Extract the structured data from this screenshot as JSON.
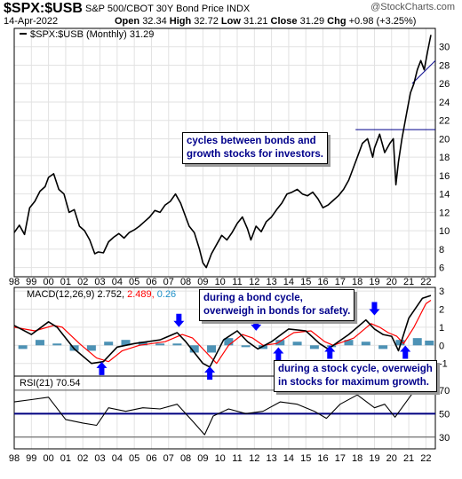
{
  "header": {
    "symbol": "$SPX:$USB",
    "description": "S&P 500/CBOT 30Y Bond Price INDX",
    "date": "14-Apr-2022",
    "open_label": "Open",
    "open": "32.34",
    "high_label": "High",
    "high": "32.72",
    "low_label": "Low",
    "low": "31.21",
    "close_label": "Close",
    "close": "31.29",
    "chg_label": "Chg",
    "chg": "+0.98 (+3.25%)",
    "brand": "@StockCharts.com"
  },
  "annotations": {
    "cycles": [
      "cycles between bonds and",
      "growth stocks for investors."
    ],
    "bond_cycle": [
      "during a bond cycle,",
      "overweigh in bonds for safety."
    ],
    "stock_cycle": [
      "during a stock cycle, overweigh",
      "in stocks for maximum growth."
    ]
  },
  "colors": {
    "price": "#000000",
    "macd": "#000000",
    "signal": "#ff0000",
    "histogram": "#2e7fa8",
    "arrows": "#0000ff",
    "rsi_line": "#000080",
    "annot_text": "#00008B",
    "macd_value_blue": "#1e90c8"
  },
  "chart_data": [
    {
      "type": "line",
      "title": "$SPX:$USB (Monthly) 31.29",
      "legend": [
        "$SPX:$USB (Monthly) 31.29"
      ],
      "x_ticks": [
        "98",
        "99",
        "00",
        "01",
        "02",
        "03",
        "04",
        "05",
        "06",
        "07",
        "08",
        "09",
        "10",
        "11",
        "12",
        "13",
        "14",
        "15",
        "16",
        "17",
        "18",
        "19",
        "20",
        "21",
        "22"
      ],
      "y_ticks": [
        6,
        8,
        10,
        12,
        14,
        16,
        18,
        20,
        22,
        24,
        26,
        28,
        30
      ],
      "ylim": [
        5,
        32
      ],
      "grid": true,
      "series": [
        {
          "name": "$SPX:$USB",
          "x": [
            1998.0,
            1998.3,
            1998.6,
            1998.9,
            1999.2,
            1999.5,
            1999.8,
            2000.0,
            2000.3,
            2000.6,
            2000.9,
            2001.2,
            2001.5,
            2001.8,
            2002.1,
            2002.4,
            2002.7,
            2002.9,
            2003.2,
            2003.5,
            2003.8,
            2004.1,
            2004.4,
            2004.7,
            2005.0,
            2005.3,
            2005.6,
            2005.9,
            2006.2,
            2006.5,
            2006.8,
            2007.1,
            2007.4,
            2007.7,
            2007.9,
            2008.2,
            2008.5,
            2008.8,
            2009.0,
            2009.2,
            2009.5,
            2009.8,
            2010.1,
            2010.4,
            2010.7,
            2011.0,
            2011.3,
            2011.6,
            2011.8,
            2012.1,
            2012.4,
            2012.7,
            2013.0,
            2013.3,
            2013.6,
            2013.9,
            2014.2,
            2014.5,
            2014.8,
            2015.1,
            2015.4,
            2015.7,
            2016.0,
            2016.3,
            2016.6,
            2016.9,
            2017.2,
            2017.5,
            2017.8,
            2018.1,
            2018.3,
            2018.6,
            2018.9,
            2019.0,
            2019.3,
            2019.6,
            2019.9,
            2020.1,
            2020.25,
            2020.4,
            2020.6,
            2020.9,
            2021.1,
            2021.3,
            2021.5,
            2021.7,
            2021.9,
            2022.1,
            2022.29
          ],
          "values": [
            9.8,
            10.6,
            9.6,
            12.5,
            13.2,
            14.3,
            14.8,
            15.8,
            16.2,
            14.5,
            14.0,
            12.0,
            12.3,
            10.5,
            10.0,
            9.0,
            7.5,
            7.7,
            7.6,
            8.8,
            9.3,
            9.7,
            9.2,
            9.8,
            10.1,
            10.5,
            11.0,
            11.5,
            12.2,
            12.0,
            12.8,
            13.2,
            14.0,
            13.0,
            12.0,
            10.5,
            9.8,
            8.0,
            6.5,
            6.0,
            7.5,
            8.5,
            9.5,
            9.0,
            9.8,
            10.8,
            11.5,
            10.2,
            9.0,
            10.5,
            9.9,
            11.0,
            11.5,
            12.3,
            13.0,
            14.0,
            14.2,
            14.5,
            14.0,
            13.8,
            14.2,
            13.5,
            12.5,
            12.8,
            13.3,
            13.8,
            14.5,
            15.5,
            17.0,
            18.5,
            19.5,
            20.0,
            18.0,
            19.0,
            20.5,
            18.5,
            19.5,
            20.0,
            15.0,
            17.5,
            20.0,
            23.0,
            25.0,
            26.0,
            27.5,
            28.5,
            27.5,
            29.5,
            31.29
          ]
        }
      ],
      "annotation_lines": [
        {
          "label": "horizontal line",
          "y": 21
        }
      ]
    },
    {
      "type": "line",
      "title": "MACD(12,26,9)",
      "legend": [
        "MACD(12,26,9) 2.752",
        "2.489",
        "0.26"
      ],
      "y_ticks": [
        -1,
        0,
        1,
        2,
        3
      ],
      "ylim": [
        -1.7,
        3.2
      ],
      "series": [
        {
          "name": "MACD",
          "x": [
            1998.0,
            1999.0,
            2000.0,
            2000.5,
            2001.5,
            2002.5,
            2003.2,
            2004.0,
            2005.0,
            2006.5,
            2007.5,
            2008.0,
            2009.0,
            2009.4,
            2010.2,
            2011.0,
            2011.6,
            2012.2,
            2013.0,
            2014.0,
            2015.0,
            2015.8,
            2016.3,
            2017.5,
            2018.5,
            2019.0,
            2019.5,
            2020.0,
            2020.4,
            2021.0,
            2021.8,
            2022.29
          ],
          "values": [
            1.1,
            0.6,
            1.3,
            1.0,
            -0.2,
            -1.0,
            -0.9,
            -0.1,
            0.1,
            0.3,
            0.7,
            0.2,
            -1.0,
            -1.2,
            0.3,
            0.8,
            0.2,
            -0.2,
            0.2,
            0.9,
            0.8,
            0.1,
            -0.2,
            0.6,
            1.4,
            0.9,
            0.6,
            0.5,
            -0.3,
            1.5,
            2.6,
            2.752
          ]
        },
        {
          "name": "Signal",
          "x": [
            1998.0,
            1999.2,
            2000.3,
            2000.8,
            2001.8,
            2002.8,
            2003.5,
            2004.3,
            2005.3,
            2006.8,
            2007.8,
            2008.4,
            2009.3,
            2009.8,
            2010.5,
            2011.3,
            2011.9,
            2012.5,
            2013.3,
            2014.3,
            2015.3,
            2016.1,
            2016.6,
            2017.8,
            2018.8,
            2019.3,
            2019.8,
            2020.3,
            2020.7,
            2021.3,
            2022.0,
            2022.29
          ],
          "values": [
            1.0,
            0.8,
            1.1,
            1.0,
            0.1,
            -0.7,
            -0.9,
            -0.3,
            0.0,
            0.2,
            0.6,
            0.4,
            -0.5,
            -1.0,
            0.0,
            0.6,
            0.4,
            0.0,
            0.1,
            0.7,
            0.8,
            0.2,
            0.0,
            0.4,
            1.2,
            1.0,
            0.7,
            0.5,
            0.1,
            1.0,
            2.3,
            2.489
          ]
        },
        {
          "name": "Histogram",
          "type": "bar",
          "x": [
            1998.5,
            1999.5,
            2000.5,
            2001.5,
            2002.5,
            2003.5,
            2004.5,
            2005.5,
            2006.5,
            2007.5,
            2008.5,
            2009.5,
            2010.5,
            2011.5,
            2012.5,
            2013.5,
            2014.5,
            2015.5,
            2016.5,
            2017.5,
            2018.5,
            2019.5,
            2020.5,
            2021.5,
            2022.2
          ],
          "values": [
            -0.2,
            0.3,
            0.1,
            -0.3,
            -0.3,
            0.2,
            0.3,
            0.2,
            0.1,
            0.1,
            -0.4,
            -0.4,
            0.4,
            -0.1,
            -0.2,
            0.3,
            0.2,
            -0.2,
            -0.1,
            0.3,
            0.2,
            -0.2,
            0.3,
            0.4,
            0.26
          ]
        }
      ]
    },
    {
      "type": "line",
      "title": "RSI(21)",
      "legend": [
        "RSI(21) 70.54"
      ],
      "y_ticks": [
        30,
        50,
        70
      ],
      "ylim": [
        20,
        82
      ],
      "reference_lines": [
        30,
        50,
        70
      ],
      "series": [
        {
          "name": "RSI(21)",
          "x": [
            1998.0,
            1999.0,
            2000.0,
            2001.0,
            2002.0,
            2002.8,
            2003.5,
            2004.5,
            2005.5,
            2006.5,
            2007.5,
            2008.5,
            2009.1,
            2009.6,
            2010.5,
            2011.5,
            2012.5,
            2013.5,
            2014.5,
            2015.5,
            2016.2,
            2017.0,
            2018.0,
            2019.0,
            2019.6,
            2020.2,
            2020.6,
            2021.2,
            2022.0,
            2022.29
          ],
          "values": [
            60,
            62,
            64,
            45,
            42,
            40,
            55,
            52,
            55,
            54,
            58,
            42,
            32,
            48,
            54,
            50,
            52,
            60,
            58,
            52,
            46,
            58,
            66,
            55,
            58,
            47,
            55,
            67,
            69,
            70.54
          ]
        }
      ]
    }
  ]
}
